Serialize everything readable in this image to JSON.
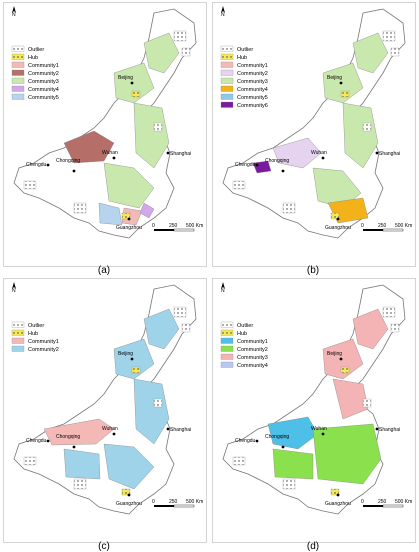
{
  "colors": {
    "outlier_fill": "#ffffff",
    "hub": "#f5e85a",
    "boundary": "#777777"
  },
  "common": {
    "north": "N",
    "scale_labels": [
      "0",
      "250",
      "500 Km"
    ],
    "cities": {
      "beijing": "Beijing",
      "shanghai": "Shanghai",
      "chengdu": "Chengdu",
      "chongqing": "Chongqing",
      "wuhan": "Wuhan",
      "guangzhou": "Guangzhou"
    }
  },
  "panels": [
    {
      "id": "a",
      "caption": "(a)",
      "legend": [
        {
          "label": "Outlier",
          "color": "#ffffff",
          "pattern": "dots"
        },
        {
          "label": "Hub",
          "color": "#f5e85a",
          "pattern": "dots"
        },
        {
          "label": "Community1",
          "color": "#f4b9b6"
        },
        {
          "label": "Community2",
          "color": "#b66e68"
        },
        {
          "label": "Community3",
          "color": "#c9e8ad"
        },
        {
          "label": "Community4",
          "color": "#d2a8e8"
        },
        {
          "label": "Community5",
          "color": "#b6d4ee"
        }
      ]
    },
    {
      "id": "b",
      "caption": "(b)",
      "legend": [
        {
          "label": "Outlier",
          "color": "#ffffff",
          "pattern": "dots"
        },
        {
          "label": "Hub",
          "color": "#f5e85a",
          "pattern": "dots"
        },
        {
          "label": "Community1",
          "color": "#f4b9b6"
        },
        {
          "label": "Community2",
          "color": "#e5d3ef"
        },
        {
          "label": "Community3",
          "color": "#c9e8ad"
        },
        {
          "label": "Community4",
          "color": "#f3b21a"
        },
        {
          "label": "Community5",
          "color": "#8ecae6"
        },
        {
          "label": "Community6",
          "color": "#7a1a9e"
        }
      ]
    },
    {
      "id": "c",
      "caption": "(c)",
      "legend": [
        {
          "label": "Outlier",
          "color": "#ffffff",
          "pattern": "dots"
        },
        {
          "label": "Hub",
          "color": "#f5e85a",
          "pattern": "dots"
        },
        {
          "label": "Community1",
          "color": "#f4b9b6"
        },
        {
          "label": "Community2",
          "color": "#9ed3ea"
        }
      ]
    },
    {
      "id": "d",
      "caption": "(d)",
      "legend": [
        {
          "label": "Outlier",
          "color": "#ffffff",
          "pattern": "dots"
        },
        {
          "label": "Hub",
          "color": "#f5e85a",
          "pattern": "dots"
        },
        {
          "label": "Community1",
          "color": "#4ec0e8"
        },
        {
          "label": "Community2",
          "color": "#8be04e"
        },
        {
          "label": "Community3",
          "color": "#f4b3b5"
        },
        {
          "label": "Community4",
          "color": "#b9c8ef"
        }
      ]
    }
  ]
}
